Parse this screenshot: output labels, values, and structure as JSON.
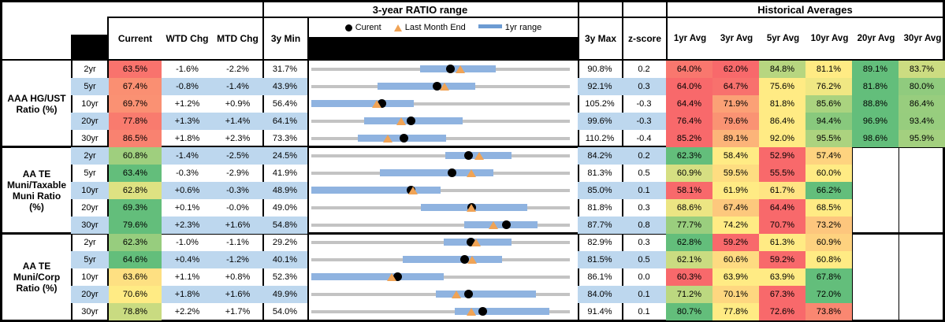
{
  "chart_data": {
    "type": "table",
    "header": {
      "ratio_range_title": "3-year RATIO range",
      "historical_title": "Historical Averages",
      "columns": {
        "current": "Current",
        "wtd": "WTD Chg",
        "mtd": "MTD Chg",
        "min": "3y Min",
        "max": "3y Max",
        "z": "z-score"
      },
      "avg_columns": [
        "1yr Avg",
        "3yr Avg",
        "5yr Avg",
        "10yr Avg",
        "20yr Avg",
        "30yr Avg"
      ],
      "legend": [
        "Curent",
        "Last Month End",
        "1yr range"
      ]
    },
    "range_chart_note": "each row bar spans 3y Min to 3y Max; blue segment = 1yr range; dot = current; triangle = last month end (current minus MTD chg)",
    "groups": [
      {
        "label_lines": [
          "AAA HG/UST",
          "Ratio (%)"
        ],
        "label": "AAA HG/UST Ratio (%)",
        "rows": [
          {
            "tenor": "2yr",
            "current": 63.5,
            "wtd": "-1.6%",
            "mtd": "-2.2%",
            "min": 31.7,
            "max": 90.8,
            "z": "0.2",
            "range1yr": [
              56.6,
              73.9
            ],
            "avgs": [
              64.0,
              62.0,
              84.8,
              81.1,
              89.1,
              83.7
            ]
          },
          {
            "tenor": "5yr",
            "current": 67.4,
            "wtd": "-0.8%",
            "mtd": "-1.4%",
            "min": 43.9,
            "max": 92.1,
            "z": "0.3",
            "range1yr": [
              56.2,
              74.5
            ],
            "avgs": [
              64.0,
              64.7,
              75.6,
              76.2,
              81.8,
              80.0
            ]
          },
          {
            "tenor": "10yr",
            "current": 69.7,
            "wtd": "+1.2%",
            "mtd": "+0.9%",
            "min": 56.4,
            "max": 105.2,
            "z": "-0.3",
            "range1yr": [
              56.4,
              75.7
            ],
            "avgs": [
              64.4,
              71.9,
              81.8,
              85.6,
              88.8,
              86.4
            ]
          },
          {
            "tenor": "20yr",
            "current": 77.8,
            "wtd": "+1.3%",
            "mtd": "+1.4%",
            "min": 64.1,
            "max": 99.6,
            "z": "-0.3",
            "range1yr": [
              71.3,
              84.9
            ],
            "avgs": [
              76.4,
              79.6,
              86.4,
              94.4,
              96.9,
              93.4
            ]
          },
          {
            "tenor": "30yr",
            "current": 86.5,
            "wtd": "+1.8%",
            "mtd": "+2.3%",
            "min": 73.3,
            "max": 110.2,
            "z": "-0.4",
            "range1yr": [
              79.9,
              92.5
            ],
            "avgs": [
              85.2,
              89.1,
              92.0,
              95.5,
              98.6,
              95.9
            ]
          }
        ]
      },
      {
        "label_lines": [
          "AA TE",
          "Muni/Taxable",
          "Muni Ratio",
          "(%)"
        ],
        "label": "AA TE Muni/Taxable Muni Ratio (%)",
        "rows": [
          {
            "tenor": "2yr",
            "current": 60.8,
            "wtd": "-1.4%",
            "mtd": "-2.5%",
            "min": 24.5,
            "max": 84.2,
            "z": "0.2",
            "range1yr": [
              55.5,
              70.8
            ],
            "avgs": [
              62.3,
              58.4,
              52.9,
              57.4,
              null,
              null
            ]
          },
          {
            "tenor": "5yr",
            "current": 63.4,
            "wtd": "-0.3%",
            "mtd": "-2.9%",
            "min": 41.9,
            "max": 81.3,
            "z": "0.5",
            "range1yr": [
              52.4,
              69.7
            ],
            "avgs": [
              60.9,
              59.5,
              55.5,
              60.0,
              null,
              null
            ]
          },
          {
            "tenor": "10yr",
            "current": 62.8,
            "wtd": "+0.6%",
            "mtd": "-0.3%",
            "min": 48.9,
            "max": 85.0,
            "z": "0.1",
            "range1yr": [
              48.9,
              67.0
            ],
            "avgs": [
              58.1,
              61.9,
              61.7,
              66.2,
              null,
              null
            ]
          },
          {
            "tenor": "20yr",
            "current": 69.3,
            "wtd": "+0.1%",
            "mtd": "-0.0%",
            "min": 49.0,
            "max": 81.8,
            "z": "0.3",
            "range1yr": [
              62.9,
              76.4
            ],
            "avgs": [
              68.6,
              67.4,
              64.4,
              68.5,
              null,
              null
            ]
          },
          {
            "tenor": "30yr",
            "current": 79.6,
            "wtd": "+2.3%",
            "mtd": "+1.6%",
            "min": 54.8,
            "max": 87.7,
            "z": "0.8",
            "range1yr": [
              74.3,
              83.6
            ],
            "avgs": [
              77.7,
              74.2,
              70.7,
              73.2,
              null,
              null
            ]
          }
        ]
      },
      {
        "label_lines": [
          "AA TE",
          "Muni/Corp",
          "Ratio (%)"
        ],
        "label": "AA TE Muni/Corp Ratio (%)",
        "rows": [
          {
            "tenor": "2yr",
            "current": 62.3,
            "wtd": "-1.0%",
            "mtd": "-1.1%",
            "min": 29.2,
            "max": 82.9,
            "z": "0.3",
            "range1yr": [
              56.7,
              70.8
            ],
            "avgs": [
              62.8,
              59.2,
              61.3,
              60.9,
              null,
              null
            ]
          },
          {
            "tenor": "5yr",
            "current": 64.6,
            "wtd": "+0.4%",
            "mtd": "-1.2%",
            "min": 40.1,
            "max": 81.5,
            "z": "0.5",
            "range1yr": [
              54.7,
              70.7
            ],
            "avgs": [
              62.1,
              60.6,
              59.2,
              60.8,
              null,
              null
            ]
          },
          {
            "tenor": "10yr",
            "current": 63.6,
            "wtd": "+1.1%",
            "mtd": "+0.8%",
            "min": 52.3,
            "max": 86.1,
            "z": "0.0",
            "range1yr": [
              52.3,
              69.6
            ],
            "avgs": [
              60.3,
              63.9,
              63.9,
              67.8,
              null,
              null
            ]
          },
          {
            "tenor": "20yr",
            "current": 70.6,
            "wtd": "+1.8%",
            "mtd": "+1.6%",
            "min": 49.9,
            "max": 84.0,
            "z": "0.1",
            "range1yr": [
              66.3,
              79.5
            ],
            "avgs": [
              71.2,
              70.1,
              67.3,
              72.0,
              null,
              null
            ]
          },
          {
            "tenor": "30yr",
            "current": 78.8,
            "wtd": "+2.2%",
            "mtd": "+1.7%",
            "min": 54.0,
            "max": 91.4,
            "z": "0.1",
            "range1yr": [
              74.7,
              88.4
            ],
            "avgs": [
              80.7,
              77.8,
              72.6,
              73.8,
              null,
              null
            ]
          }
        ]
      }
    ]
  },
  "colors": {
    "stripe_blue": "#BDD7EE",
    "scale_red": "#F8696B",
    "scale_yellow": "#FFEB84",
    "scale_green": "#63BE7B",
    "range_bar_blue": "#8FB3E0",
    "track_gray": "#C3C3C3",
    "marker_triangle_orange": "#F0A355",
    "marker_dot_black": "#000000"
  }
}
